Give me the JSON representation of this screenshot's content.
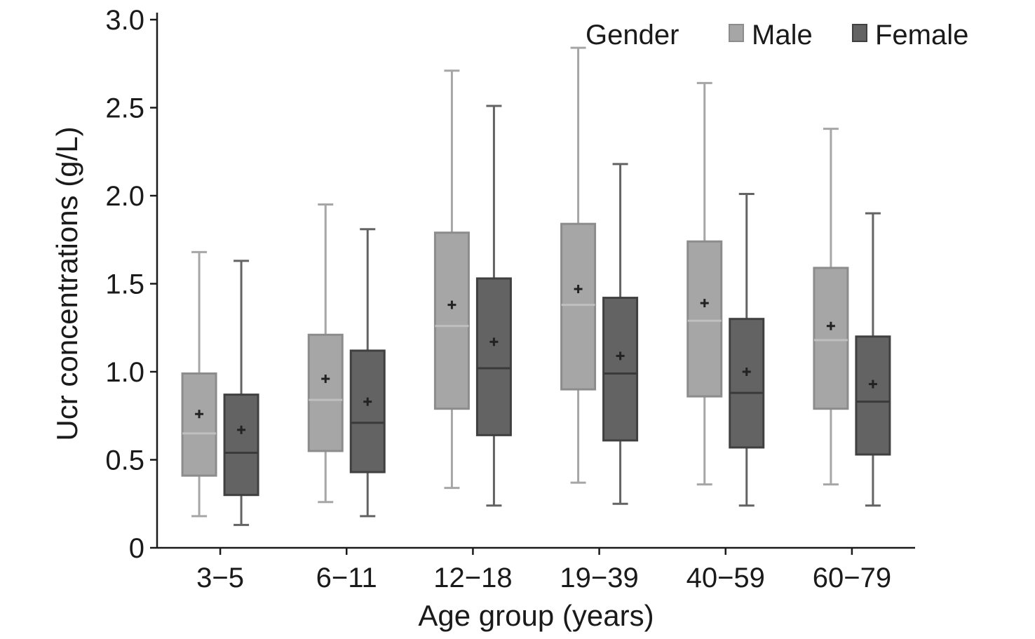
{
  "chart_data": {
    "type": "box",
    "xlabel": "Age group (years)",
    "ylabel": "Ucr concentrations (g/L)",
    "ylim": [
      0,
      3.0
    ],
    "yticks": [
      0,
      0.5,
      1.0,
      1.5,
      2.0,
      2.5,
      3.0
    ],
    "ytick_labels": [
      "0",
      "0.5",
      "1.0",
      "1.5",
      "2.0",
      "2.5",
      "3.0"
    ],
    "categories": [
      "3−5",
      "6−11",
      "12−18",
      "19−39",
      "40−59",
      "60−79"
    ],
    "legend": {
      "title": "Gender",
      "placement": "top-right"
    },
    "series": [
      {
        "name": "Male",
        "color": "#a6a6a6",
        "edge": "#8c8c8c",
        "boxes": [
          {
            "min": 0.18,
            "q1": 0.41,
            "median": 0.65,
            "q3": 0.99,
            "max": 1.68,
            "mean": 0.76
          },
          {
            "min": 0.26,
            "q1": 0.55,
            "median": 0.84,
            "q3": 1.21,
            "max": 1.95,
            "mean": 0.96
          },
          {
            "min": 0.34,
            "q1": 0.79,
            "median": 1.26,
            "q3": 1.79,
            "max": 2.71,
            "mean": 1.38
          },
          {
            "min": 0.37,
            "q1": 0.9,
            "median": 1.38,
            "q3": 1.84,
            "max": 2.84,
            "mean": 1.47
          },
          {
            "min": 0.36,
            "q1": 0.86,
            "median": 1.29,
            "q3": 1.74,
            "max": 2.64,
            "mean": 1.39
          },
          {
            "min": 0.36,
            "q1": 0.79,
            "median": 1.18,
            "q3": 1.59,
            "max": 2.38,
            "mean": 1.26
          }
        ]
      },
      {
        "name": "Female",
        "color": "#636363",
        "edge": "#404040",
        "boxes": [
          {
            "min": 0.13,
            "q1": 0.3,
            "median": 0.54,
            "q3": 0.87,
            "max": 1.63,
            "mean": 0.67
          },
          {
            "min": 0.18,
            "q1": 0.43,
            "median": 0.71,
            "q3": 1.12,
            "max": 1.81,
            "mean": 0.83
          },
          {
            "min": 0.24,
            "q1": 0.64,
            "median": 1.02,
            "q3": 1.53,
            "max": 2.51,
            "mean": 1.17
          },
          {
            "min": 0.25,
            "q1": 0.61,
            "median": 0.99,
            "q3": 1.42,
            "max": 2.18,
            "mean": 1.09
          },
          {
            "min": 0.24,
            "q1": 0.57,
            "median": 0.88,
            "q3": 1.3,
            "max": 2.01,
            "mean": 1.0
          },
          {
            "min": 0.24,
            "q1": 0.53,
            "median": 0.83,
            "q3": 1.2,
            "max": 1.9,
            "mean": 0.93
          }
        ]
      }
    ]
  }
}
